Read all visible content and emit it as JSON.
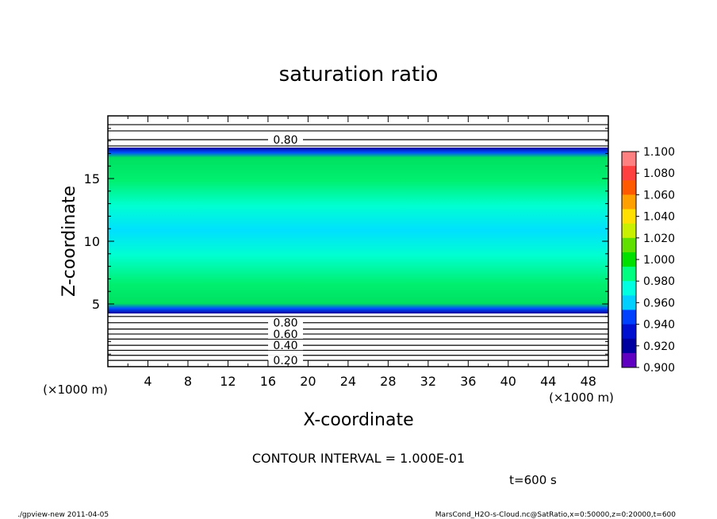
{
  "chart_data": {
    "type": "heatmap",
    "title": "saturation ratio",
    "xlabel": "X-coordinate",
    "ylabel": "Z-coordinate",
    "x_unit_label": "(×1000 m)",
    "z_unit_label": "(×1000 m)",
    "xlim": [
      0,
      50
    ],
    "ylim": [
      0,
      20
    ],
    "x_ticks": [
      "4",
      "8",
      "12",
      "16",
      "20",
      "24",
      "28",
      "32",
      "36",
      "40",
      "44",
      "48"
    ],
    "y_ticks": [
      "5",
      "10",
      "15"
    ],
    "colorbar": {
      "levels": [
        "1.100",
        "1.080",
        "1.060",
        "1.040",
        "1.020",
        "1.000",
        "0.980",
        "0.960",
        "0.940",
        "0.920",
        "0.900"
      ],
      "colors": [
        "#ff8080",
        "#ff4040",
        "#ff5a00",
        "#ffa000",
        "#ffe000",
        "#c8f000",
        "#60e000",
        "#00e000",
        "#00ff80",
        "#00ffe0",
        "#00d0ff",
        "#0040ff",
        "#0010d0",
        "#0000a0",
        "#6000c0"
      ]
    },
    "contour_labels": [
      {
        "label": "0.80",
        "z": 18.1
      },
      {
        "label": "0.80",
        "z": 3.5
      },
      {
        "label": "0.60",
        "z": 2.6
      },
      {
        "label": "0.40",
        "z": 1.7
      },
      {
        "label": "0.20",
        "z": 0.5
      }
    ],
    "contour_interval_text": "CONTOUR INTERVAL = 1.000E-01",
    "time_label": "t=600 s"
  },
  "footer": {
    "left": "./gpview-new 2011-04-05",
    "right": "MarsCond_H2O-s-Cloud.nc@SatRatio,x=0:50000,z=0:20000,t=600"
  }
}
